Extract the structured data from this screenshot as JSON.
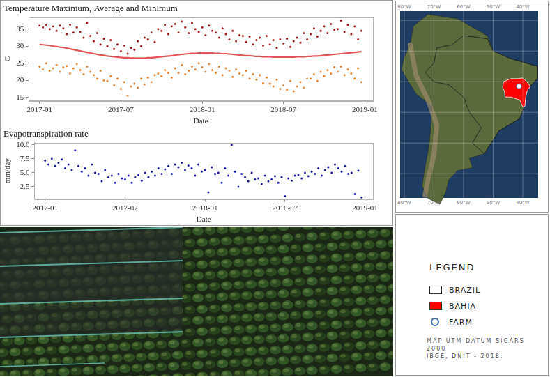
{
  "chart_data": [
    {
      "type": "scatter",
      "title": "Temperature Maximum, Average and Minimum",
      "x_label": "Date",
      "y_label": "C",
      "x": [
        0,
        0.25,
        0.5,
        0.75,
        1,
        1.25,
        1.5,
        1.75,
        2,
        2.25,
        2.5,
        2.75,
        3,
        3.25,
        3.5,
        3.75,
        4,
        4.25,
        4.5,
        4.75,
        5,
        5.25,
        5.5,
        5.75,
        6,
        6.25,
        6.5,
        6.75,
        7,
        7.25,
        7.5,
        7.75,
        8,
        8.25,
        8.5,
        8.75,
        9,
        9.25,
        9.5,
        9.75,
        10,
        10.25,
        10.5,
        10.75,
        11,
        11.25,
        11.5,
        11.75,
        12,
        12.25,
        12.5,
        12.75,
        13,
        13.25,
        13.5,
        13.75,
        14,
        14.25,
        14.5,
        14.75,
        15,
        15.25,
        15.5,
        15.75,
        16,
        16.25,
        16.5,
        16.75,
        17,
        17.25,
        17.5,
        17.75,
        18,
        18.25,
        18.5,
        18.75,
        19,
        19.25,
        19.5,
        19.75,
        20,
        20.25,
        20.5,
        20.75,
        21,
        21.25,
        21.5,
        21.75,
        22,
        22.25,
        22.5,
        22.75,
        23,
        23.25,
        23.5,
        23.75
      ],
      "xlim": [
        -0.8,
        24.6
      ],
      "xticks": [
        {
          "value": 0,
          "label": "2017-01"
        },
        {
          "value": 6,
          "label": "2017-07"
        },
        {
          "value": 12,
          "label": "2018-01"
        },
        {
          "value": 18,
          "label": "2018-07"
        },
        {
          "value": 24,
          "label": "2019-01"
        }
      ],
      "ylim": [
        14,
        38.5
      ],
      "yticks": [
        15,
        20,
        25,
        30,
        35
      ],
      "grid": false,
      "series": [
        {
          "type": "scatter",
          "marker": "circle",
          "color": "#9b1c1c",
          "values": [
            36,
            35.5,
            36.2,
            35,
            35.8,
            34.5,
            36,
            35.2,
            33.5,
            36.3,
            34,
            35.5,
            34.2,
            32.5,
            36.8,
            33,
            31.5,
            33.8,
            30.5,
            32.2,
            30,
            31.8,
            29.2,
            30.5,
            28.5,
            30.2,
            27.8,
            29.5,
            29,
            31.5,
            30,
            32.5,
            32,
            34,
            31.2,
            35,
            34.5,
            36.2,
            33.5,
            35.8,
            36.5,
            34,
            37.2,
            35.5,
            33.8,
            36.8,
            35,
            34.2,
            35.5,
            33.2,
            36,
            34.5,
            34,
            32.5,
            35.2,
            33.5,
            32,
            34.5,
            31.5,
            33.2,
            33,
            31.2,
            32.8,
            30.5,
            31.8,
            32.5,
            30.2,
            33,
            30.5,
            31.8,
            29.5,
            32,
            30.8,
            32.2,
            29.8,
            31.5,
            32.5,
            31,
            33.8,
            32,
            33.5,
            35.2,
            32.8,
            34.5,
            35.8,
            33.8,
            36.5,
            34.8,
            35,
            37.5,
            34.2,
            36.2,
            33.5,
            35.8,
            32,
            34.5
          ]
        },
        {
          "type": "line",
          "line_style": "solid",
          "color": "#e05555",
          "values": [
            30.5,
            30.4,
            30.3,
            30.2,
            30.0,
            29.9,
            29.7,
            29.6,
            29.4,
            29.2,
            29.0,
            28.8,
            28.6,
            28.4,
            28.2,
            28.0,
            27.8,
            27.6,
            27.4,
            27.3,
            27.1,
            27.0,
            26.9,
            26.8,
            26.7,
            26.6,
            26.6,
            26.5,
            26.5,
            26.5,
            26.5,
            26.5,
            26.6,
            26.6,
            26.7,
            26.8,
            26.9,
            27.0,
            27.1,
            27.2,
            27.4,
            27.5,
            27.6,
            27.7,
            27.8,
            27.9,
            27.9,
            28.0,
            28.0,
            28.0,
            28.0,
            28.0,
            27.9,
            27.9,
            27.8,
            27.8,
            27.7,
            27.6,
            27.5,
            27.4,
            27.3,
            27.2,
            27.2,
            27.1,
            27.0,
            27.0,
            26.9,
            26.9,
            26.9,
            26.8,
            26.8,
            26.8,
            26.8,
            26.8,
            26.8,
            26.8,
            26.9,
            26.9,
            26.9,
            27.0,
            27.0,
            27.1,
            27.1,
            27.2,
            27.3,
            27.4,
            27.5,
            27.6,
            27.7,
            27.8,
            27.9,
            28.0,
            28.1,
            28.2,
            28.3,
            28.4
          ]
        },
        {
          "type": "scatter",
          "marker": "circle",
          "color": "#e08a3c",
          "values": [
            24,
            23.2,
            25,
            22.8,
            23.5,
            24.5,
            22.5,
            23.8,
            24.2,
            22,
            23.5,
            24.8,
            23,
            21.8,
            24,
            22.5,
            21.5,
            20.5,
            22.8,
            20,
            19.8,
            21.2,
            18.5,
            20.5,
            17.5,
            19.5,
            15.5,
            18.2,
            19,
            17.8,
            20.5,
            18.8,
            20.8,
            19.5,
            21.5,
            22,
            21.2,
            23,
            22.2,
            20.8,
            23.5,
            22.2,
            24.5,
            21.8,
            22.8,
            24,
            23.2,
            25,
            23.8,
            22.5,
            24.8,
            23,
            22.2,
            24,
            21.5,
            23.5,
            22.8,
            21,
            23.2,
            22,
            21.5,
            22.8,
            20.5,
            21.8,
            20.2,
            21.5,
            19.2,
            20.8,
            19,
            18.2,
            20.2,
            17.5,
            18.5,
            17.2,
            19.8,
            16.8,
            18.2,
            19.5,
            17.8,
            20.5,
            20.5,
            21.8,
            19.8,
            22.5,
            21.2,
            23,
            22,
            23.8,
            22.5,
            24,
            21.5,
            23.2,
            22,
            20.5,
            23.5,
            19.5
          ]
        }
      ]
    },
    {
      "type": "scatter",
      "title": "Evapotranspiration rate",
      "x_label": "Date",
      "y_label": "mm/day",
      "x": [
        0,
        0.25,
        0.5,
        0.75,
        1,
        1.25,
        1.5,
        1.75,
        2,
        2.25,
        2.5,
        2.75,
        3,
        3.25,
        3.5,
        3.75,
        4,
        4.25,
        4.5,
        4.75,
        5,
        5.25,
        5.5,
        5.75,
        6,
        6.25,
        6.5,
        6.75,
        7,
        7.25,
        7.5,
        7.75,
        8,
        8.25,
        8.5,
        8.75,
        9,
        9.25,
        9.5,
        9.75,
        10,
        10.25,
        10.5,
        10.75,
        11,
        11.25,
        11.5,
        11.75,
        12,
        12.25,
        12.5,
        12.75,
        13,
        13.25,
        13.5,
        13.75,
        14,
        14.25,
        14.5,
        14.75,
        15,
        15.25,
        15.5,
        15.75,
        16,
        16.25,
        16.5,
        16.75,
        17,
        17.25,
        17.5,
        17.75,
        18,
        18.25,
        18.5,
        18.75,
        19,
        19.25,
        19.5,
        19.75,
        20,
        20.25,
        20.5,
        20.75,
        21,
        21.25,
        21.5,
        21.75,
        22,
        22.25,
        22.5,
        22.75,
        23,
        23.25,
        23.5,
        23.75
      ],
      "xlim": [
        -0.8,
        24.6
      ],
      "xticks": [
        {
          "value": 0,
          "label": "2017-01"
        },
        {
          "value": 6,
          "label": "2017-07"
        },
        {
          "value": 12,
          "label": "2018-01"
        },
        {
          "value": 18,
          "label": "2018-07"
        },
        {
          "value": 24,
          "label": "2019-01"
        }
      ],
      "ylim": [
        0.3,
        10.4
      ],
      "yticks": [
        2.5,
        {
          "value": 5,
          "label": "5.0"
        },
        7.5,
        {
          "value": 10,
          "label": "10.0"
        }
      ],
      "grid": false,
      "series": [
        {
          "type": "scatter",
          "marker": "circle",
          "color": "#1c1c9e",
          "values": [
            7.2,
            6.5,
            7.5,
            6.2,
            6.8,
            7.4,
            5.8,
            6.5,
            5.5,
            9.0,
            6.2,
            5.2,
            5.8,
            4.5,
            6.5,
            5.0,
            4.8,
            3.5,
            5.5,
            4.2,
            4.5,
            3.2,
            4.8,
            4.0,
            3.8,
            4.5,
            3.2,
            4.2,
            4.6,
            3.6,
            5.0,
            4.2,
            5.2,
            4.5,
            5.8,
            4.8,
            5.6,
            6.2,
            4.8,
            6.5,
            6.0,
            6.8,
            5.5,
            6.3,
            5.8,
            4.5,
            6.5,
            5.2,
            5.5,
            1.5,
            6.0,
            4.8,
            5.0,
            3.2,
            5.8,
            4.5,
            10.0,
            5.2,
            2.5,
            4.8,
            4.2,
            3.5,
            5.0,
            3.8,
            4.0,
            3.0,
            4.5,
            3.5,
            3.8,
            4.4,
            3.2,
            4.2,
            0.8,
            4.0,
            3.6,
            4.5,
            4.6,
            4.0,
            5.0,
            4.4,
            5.2,
            4.8,
            5.8,
            4.5,
            5.5,
            6.0,
            5.0,
            6.5,
            5.8,
            5.2,
            6.2,
            4.8,
            5.0,
            1.2,
            5.4,
            0.6
          ]
        }
      ]
    }
  ],
  "map": {
    "lon_ticks": [
      {
        "value": -80,
        "label": "80°W"
      },
      {
        "value": -70,
        "label": "70°W"
      },
      {
        "value": -60,
        "label": "60°W"
      },
      {
        "value": -50,
        "label": "50°W"
      },
      {
        "value": -40,
        "label": "40°W"
      }
    ]
  },
  "legend": {
    "title": "LEGEND",
    "items": [
      {
        "label": "BRAZIL",
        "marker": "square",
        "color": "#ffffff"
      },
      {
        "label": "BAHIA",
        "marker": "square",
        "color": "#ff0000"
      },
      {
        "label": "FARM",
        "marker": "circle",
        "color": "#ffffff"
      }
    ],
    "source": [
      "MAP UTM DATUM SIGARS 2000",
      "IBGE, DNIT - 2018."
    ]
  }
}
